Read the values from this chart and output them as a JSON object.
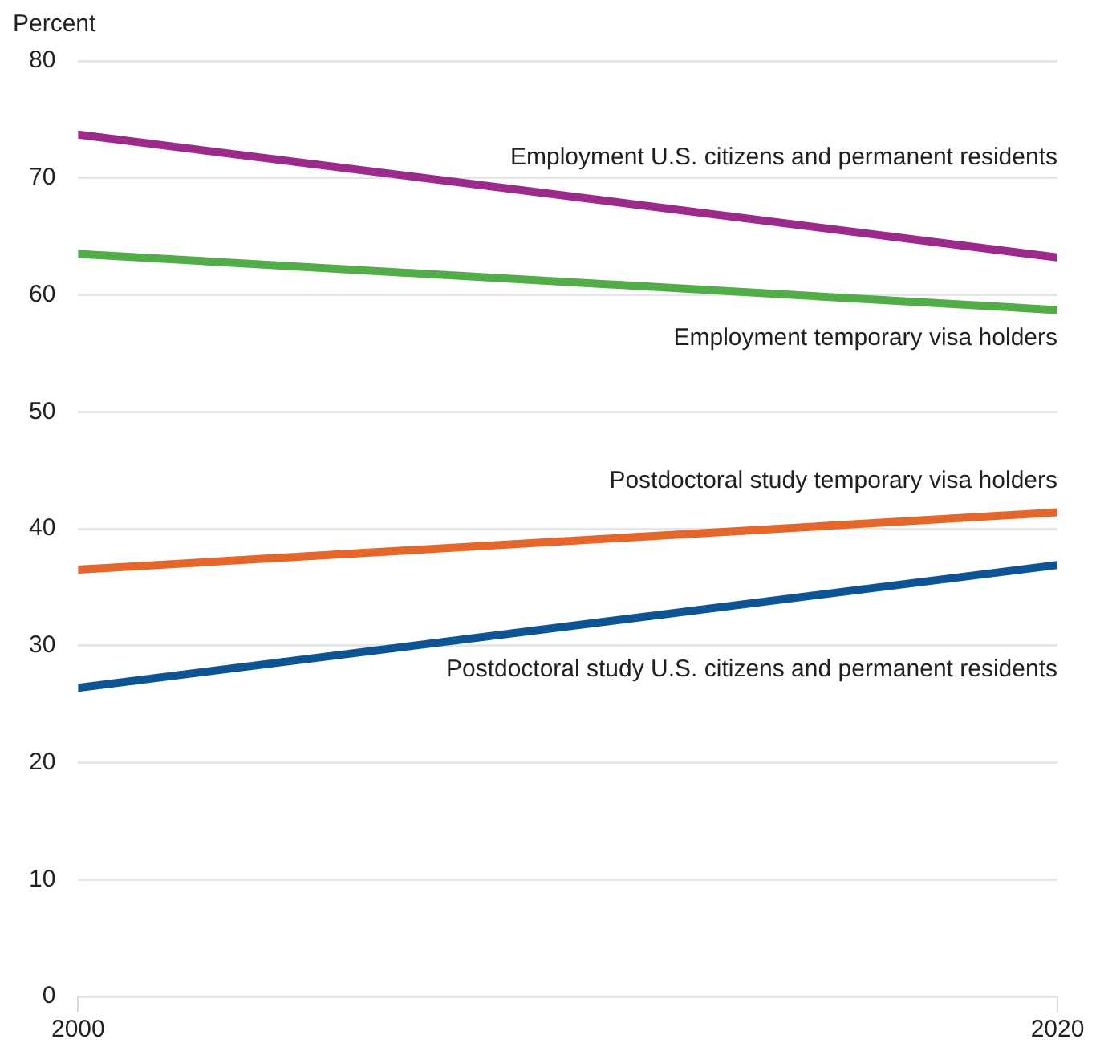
{
  "chart_data": {
    "type": "line",
    "ylabel": "Percent",
    "x": [
      2000,
      2020
    ],
    "xlim": [
      2000,
      2020
    ],
    "xticks": [
      2000,
      2020
    ],
    "ylim": [
      0,
      80
    ],
    "yticks": [
      0,
      10,
      20,
      30,
      40,
      50,
      60,
      70,
      80
    ],
    "grid": "y",
    "legend": false,
    "marker": "none",
    "line_style": "solid",
    "series": [
      {
        "name": "Employment U.S. citizens and permanent residents",
        "color": "#9b2a8a",
        "values": [
          73.7,
          63.2
        ]
      },
      {
        "name": "Employment temporary visa holders",
        "color": "#52ad48",
        "values": [
          63.5,
          58.7
        ]
      },
      {
        "name": "Postdoctoral study temporary visa holders",
        "color": "#e5662a",
        "values": [
          36.5,
          41.4
        ]
      },
      {
        "name": "Postdoctoral study U.S. citizens and permanent residents",
        "color": "#0d5495",
        "values": [
          26.4,
          36.9
        ]
      }
    ]
  }
}
